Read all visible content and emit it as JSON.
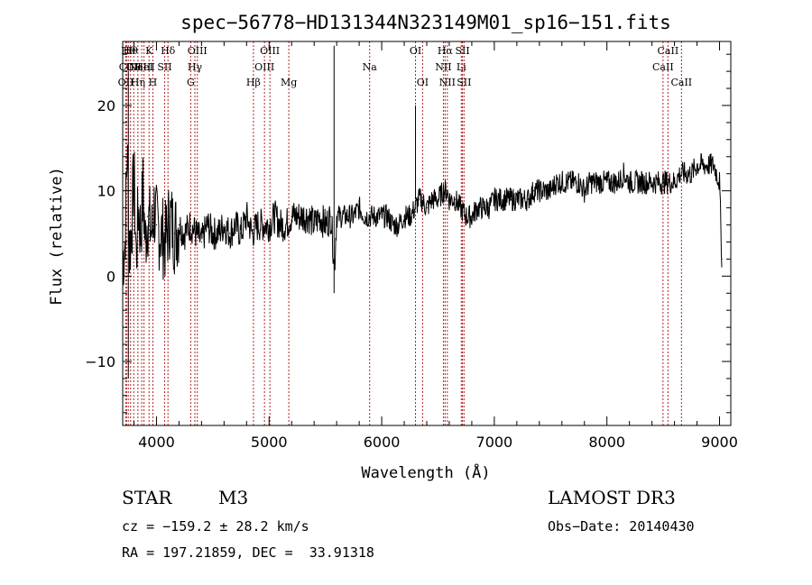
{
  "chart_data": {
    "type": "line",
    "title": "spec−56778−HD131344N323149M01_sp16−151.fits",
    "xlabel": "Wavelength (Å)",
    "ylabel": "Flux (relative)",
    "xlim": [
      3700,
      9100
    ],
    "ylim": [
      -17.5,
      27.5
    ],
    "xticks": [
      4000,
      5000,
      6000,
      7000,
      8000,
      9000
    ],
    "xtick_labels": [
      "4000",
      "5000",
      "6000",
      "7000",
      "8000",
      "9000"
    ],
    "yticks": [
      -10,
      0,
      10,
      20
    ],
    "ytick_labels": [
      "−10",
      "0",
      "10",
      "20"
    ],
    "series": [
      {
        "name": "flux",
        "x": [
          3700,
          3720,
          3740,
          3760,
          3780,
          3800,
          3820,
          3840,
          3860,
          3880,
          3900,
          3920,
          3940,
          3960,
          3980,
          4000,
          4040,
          4080,
          4120,
          4160,
          4200,
          4250,
          4300,
          4350,
          4400,
          4450,
          4500,
          4550,
          4600,
          4650,
          4700,
          4750,
          4800,
          4850,
          4900,
          4950,
          5000,
          5050,
          5100,
          5150,
          5200,
          5250,
          5300,
          5350,
          5400,
          5450,
          5500,
          5550,
          5580,
          5600,
          5650,
          5700,
          5750,
          5800,
          5850,
          5900,
          5950,
          6000,
          6050,
          6100,
          6150,
          6200,
          6250,
          6300,
          6330,
          6350,
          6400,
          6450,
          6500,
          6550,
          6580,
          6600,
          6650,
          6700,
          6750,
          6800,
          6850,
          6900,
          6950,
          7000,
          7050,
          7100,
          7150,
          7200,
          7250,
          7300,
          7350,
          7400,
          7450,
          7500,
          7550,
          7600,
          7650,
          7700,
          7750,
          7800,
          7850,
          7900,
          7950,
          8000,
          8050,
          8100,
          8150,
          8200,
          8250,
          8300,
          8350,
          8400,
          8450,
          8500,
          8550,
          8600,
          8650,
          8700,
          8750,
          8800,
          8850,
          8900,
          8950,
          9000,
          9020
        ],
        "y": [
          2,
          4,
          15,
          3,
          6,
          12,
          2,
          8,
          5,
          10,
          4,
          7,
          6,
          5,
          8,
          6,
          5,
          4,
          7,
          5,
          6,
          5,
          6,
          5,
          4,
          6,
          5,
          5,
          6,
          5,
          6,
          5,
          7,
          5,
          6,
          6,
          6,
          7,
          6,
          6,
          7,
          7,
          7,
          7,
          6,
          7,
          6,
          7,
          1,
          7,
          7,
          7,
          7,
          8,
          7,
          7,
          7,
          7,
          7,
          6,
          6,
          7,
          7,
          8,
          9,
          9,
          8,
          9,
          9,
          10,
          10,
          9,
          9,
          8,
          7,
          7,
          8,
          8,
          8,
          9,
          9,
          9,
          9,
          9,
          9,
          9,
          10,
          10,
          10,
          10,
          11,
          11,
          11,
          11,
          11,
          10,
          11,
          11,
          11,
          11,
          11,
          11,
          12,
          11,
          11,
          11,
          11,
          11,
          11,
          11,
          11,
          11,
          12,
          12,
          12,
          13,
          13,
          13,
          13,
          11,
          2
        ]
      }
    ],
    "lines": [
      {
        "wl": 3750,
        "label": "Hθ",
        "row": 0
      },
      {
        "wl": 3770,
        "label": "Hθ",
        "row": 0
      },
      {
        "wl": 3728,
        "label": "OII",
        "row": 2
      },
      {
        "wl": 3734,
        "label": "CII",
        "row": 1
      },
      {
        "wl": 3798,
        "label": "CII",
        "row": 1
      },
      {
        "wl": 3835,
        "label": "Hη",
        "row": 2
      },
      {
        "wl": 3869,
        "label": "NeIII",
        "row": 1
      },
      {
        "wl": 3889,
        "label": "HeI",
        "row": 1
      },
      {
        "wl": 3934,
        "label": "K",
        "row": 0
      },
      {
        "wl": 3968,
        "label": "H",
        "row": 2
      },
      {
        "wl": 4072,
        "label": "SII",
        "row": 1
      },
      {
        "wl": 4102,
        "label": "Hδ",
        "row": 0
      },
      {
        "wl": 4304,
        "label": "G",
        "row": 2
      },
      {
        "wl": 4341,
        "label": "Hγ",
        "row": 1
      },
      {
        "wl": 4363,
        "label": "OIII",
        "row": 0
      },
      {
        "wl": 4861,
        "label": "Hβ",
        "row": 2
      },
      {
        "wl": 4959,
        "label": "OIII",
        "row": 1
      },
      {
        "wl": 5007,
        "label": "OIII",
        "row": 0
      },
      {
        "wl": 5175,
        "label": "Mg",
        "row": 2
      },
      {
        "wl": 5893,
        "label": "Na",
        "row": 1
      },
      {
        "wl": 6300,
        "label": "OI",
        "row": 0
      },
      {
        "wl": 6363,
        "label": "OI",
        "row": 2
      },
      {
        "wl": 6548,
        "label": "NII",
        "row": 1
      },
      {
        "wl": 6563,
        "label": "Hα",
        "row": 0
      },
      {
        "wl": 6583,
        "label": "NII",
        "row": 2
      },
      {
        "wl": 6707,
        "label": "Li",
        "row": 1
      },
      {
        "wl": 6717,
        "label": "SII",
        "row": 0
      },
      {
        "wl": 6731,
        "label": "SII",
        "row": 2
      },
      {
        "wl": 8498,
        "label": "CaII",
        "row": 1
      },
      {
        "wl": 8542,
        "label": "CaII",
        "row": 0
      },
      {
        "wl": 8662,
        "label": "CaII",
        "row": 2
      }
    ],
    "line_color": "#b22222"
  },
  "info": {
    "object_class": "STAR",
    "subclass": "M3",
    "survey": "LAMOST DR3",
    "cz": "cz = −159.2 ± 28.2 km/s",
    "obs_date": "Obs−Date: 20140430",
    "radec": "RA = 197.21859, DEC =  33.91318"
  }
}
